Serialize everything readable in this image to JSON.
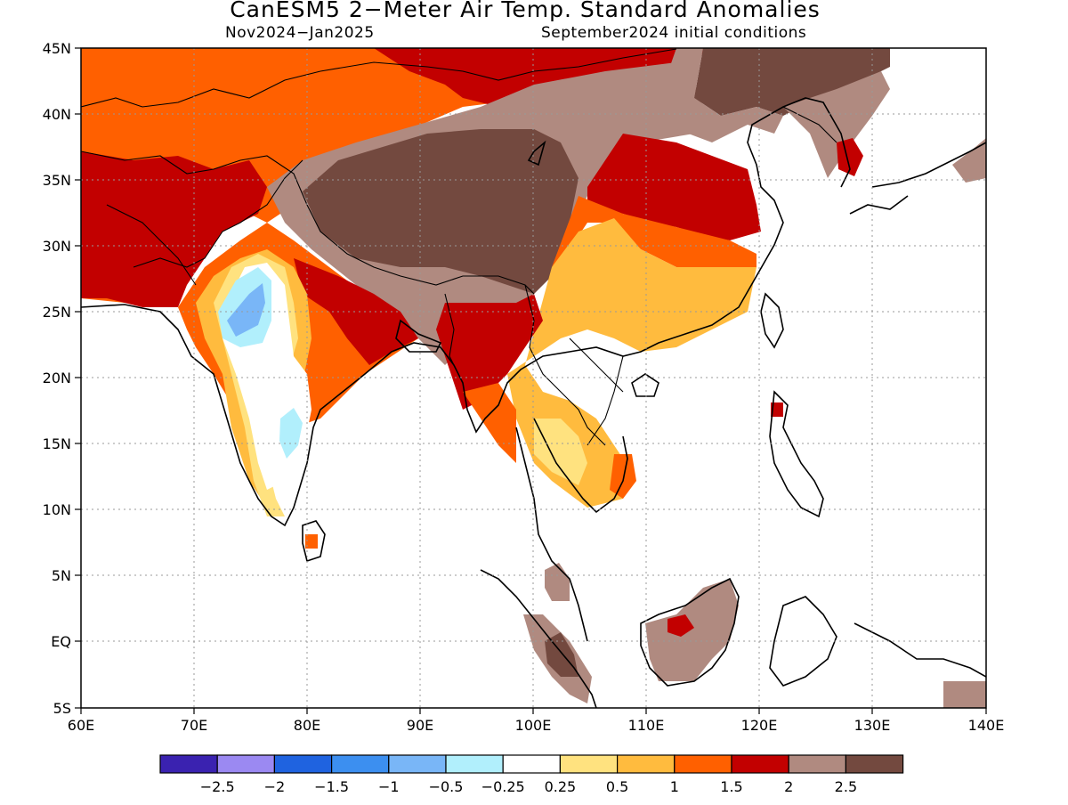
{
  "title": "CanESM5 2−Meter Air Temp. Standard Anomalies",
  "subtitle_left": "Nov2024−Jan2025",
  "subtitle_right": "September2024 initial conditions",
  "lat_labels": [
    "45N",
    "40N",
    "35N",
    "30N",
    "25N",
    "20N",
    "15N",
    "10N",
    "5N",
    "EQ",
    "5S"
  ],
  "lon_labels": [
    "60E",
    "70E",
    "80E",
    "90E",
    "100E",
    "110E",
    "120E",
    "130E",
    "140E"
  ],
  "colorbar": {
    "colors": [
      "#3a22b0",
      "#9b89f2",
      "#1f63e0",
      "#3c8ff0",
      "#79b6f7",
      "#b1effc",
      "#ffffff",
      "#ffe27f",
      "#ffbb3e",
      "#ff6000",
      "#c20000",
      "#b08a80",
      "#73493f"
    ],
    "labels": [
      "−2.5",
      "−2",
      "−1.5",
      "−1",
      "−0.5",
      "−0.25",
      "0.25",
      "0.5",
      "1",
      "1.5",
      "2",
      "2.5"
    ]
  },
  "region_colors": {
    "orange": "#ff6000",
    "red": "#c20000",
    "light_brown": "#b08a80",
    "dark_brown": "#73493f",
    "gold": "#ffbb3e",
    "yellow": "#ffe27f",
    "cyan": "#b1effc",
    "light_blue": "#79b6f7"
  }
}
